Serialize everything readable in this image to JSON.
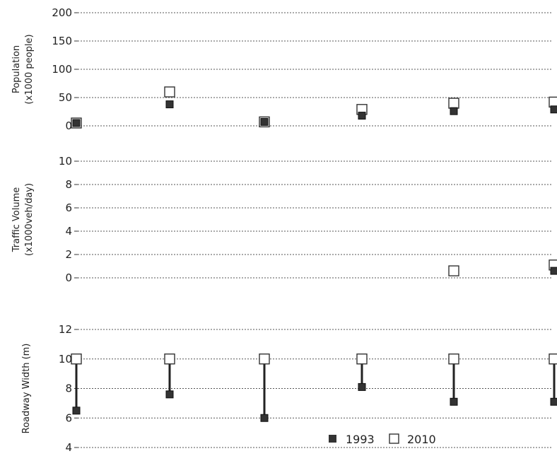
{
  "chart_data": [
    {
      "type": "scatter",
      "ylabel_lines": [
        "Population",
        "(x1000 people)"
      ],
      "ylim": [
        0,
        200
      ],
      "yticks": [
        "0",
        "50",
        "100",
        "150",
        "200"
      ],
      "grid": "dotted-horizontal",
      "series": [
        {
          "name": "1993",
          "values": [
            5,
            38,
            7,
            18,
            26,
            29
          ]
        },
        {
          "name": "2010",
          "values": [
            5,
            60,
            7,
            29,
            40,
            42
          ]
        }
      ],
      "connectors": false
    },
    {
      "type": "scatter",
      "ylabel_lines": [
        "Traffic Volume",
        "(x1000veh/day)"
      ],
      "ylim": [
        0,
        10
      ],
      "yticks": [
        "0",
        "2",
        "4",
        "6",
        "8",
        "10"
      ],
      "grid": "dotted-horizontal",
      "series": [
        {
          "name": "1993",
          "values": [
            null,
            null,
            null,
            null,
            null,
            0.6
          ]
        },
        {
          "name": "2010",
          "values": [
            null,
            null,
            null,
            null,
            0.6,
            1.1
          ]
        }
      ],
      "connectors": false
    },
    {
      "type": "scatter",
      "ylabel_lines": [
        "Roadway Width (m)"
      ],
      "ylim": [
        4,
        12
      ],
      "yticks": [
        "4",
        "6",
        "8",
        "10",
        "12"
      ],
      "grid": "dotted-horizontal",
      "series": [
        {
          "name": "1993",
          "values": [
            6.5,
            7.6,
            6.0,
            8.1,
            7.1,
            7.1
          ]
        },
        {
          "name": "2010",
          "values": [
            10,
            10,
            10,
            10,
            10,
            10
          ]
        }
      ],
      "connectors": true
    }
  ],
  "legend": {
    "items": [
      {
        "label": "1993",
        "marker": "filled-square"
      },
      {
        "label": "2010",
        "marker": "open-square"
      }
    ],
    "placement": "bottom-right"
  }
}
